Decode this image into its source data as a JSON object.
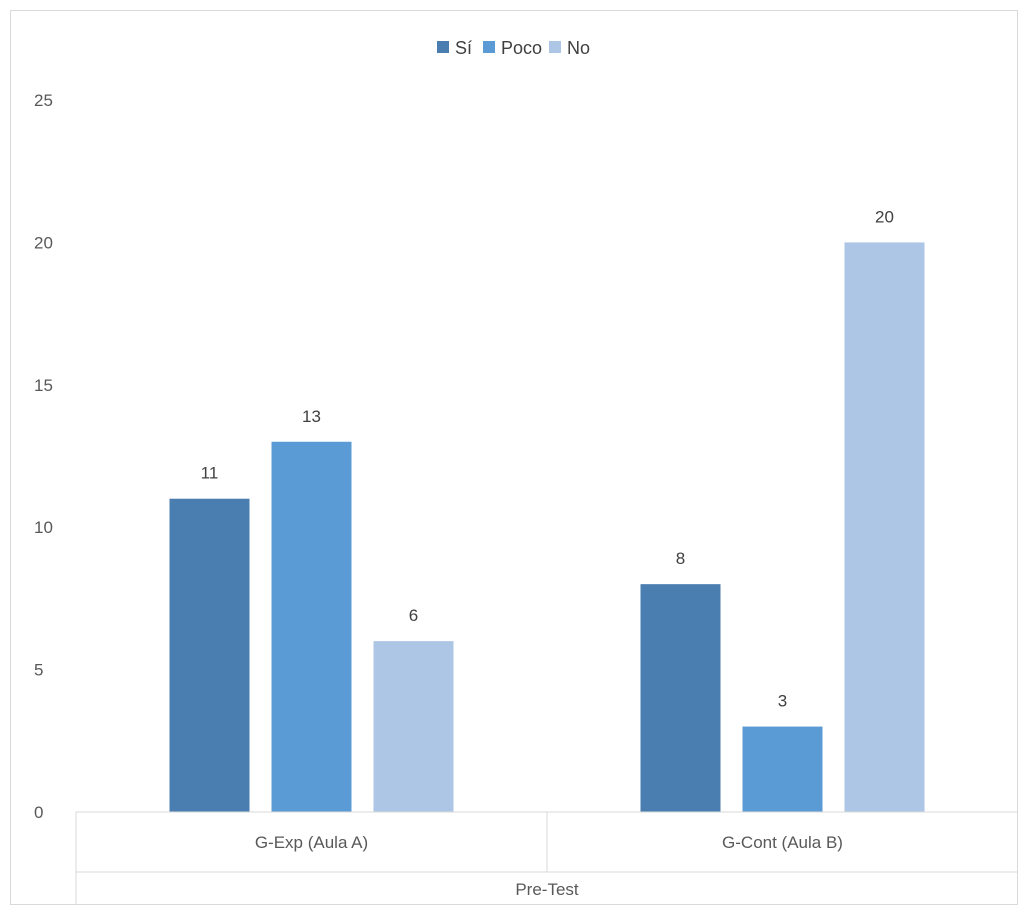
{
  "chart_data": {
    "type": "bar",
    "categories": [
      "G-Exp (Aula A)",
      "G-Cont (Aula B)"
    ],
    "group_label": "Pre-Test",
    "series": [
      {
        "name": "Sí",
        "values": [
          11,
          8
        ],
        "color": "#4a7eb0"
      },
      {
        "name": "Poco",
        "values": [
          13,
          3
        ],
        "color": "#5b9bd5"
      },
      {
        "name": "No",
        "values": [
          6,
          20
        ],
        "color": "#adc6e5"
      }
    ],
    "ylim": [
      0,
      25
    ],
    "yticks": [
      "0",
      "5",
      "10",
      "15",
      "20",
      "25"
    ],
    "legend_position": "top",
    "grid": false,
    "data_labels": true
  }
}
